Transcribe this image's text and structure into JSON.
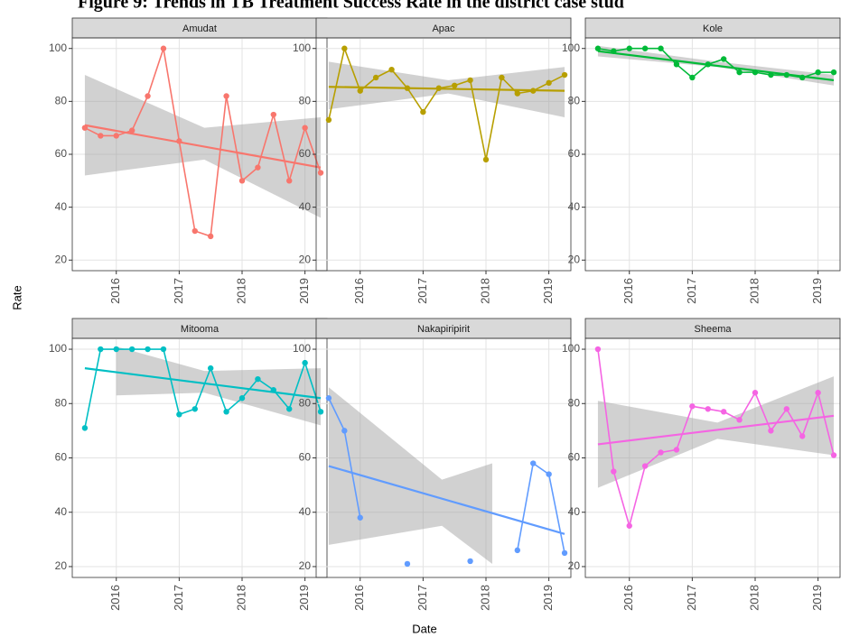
{
  "title": "Figure 9: Trends in TB Treatment Success Rate in the district case stud",
  "xlabel": "Date",
  "ylabel": "Rate",
  "chart_data": [
    {
      "type": "line",
      "title": "Amudat",
      "color": "#F8766D",
      "grid": true,
      "xlim": [
        2015.3,
        2019.35
      ],
      "xticks": [
        2016,
        2017,
        2018,
        2019
      ],
      "ylim": [
        16,
        104
      ],
      "yticks": [
        20,
        40,
        60,
        80,
        100
      ],
      "x": [
        2015.5,
        2015.75,
        2016,
        2016.25,
        2016.5,
        2016.75,
        2017,
        2017.25,
        2017.5,
        2017.75,
        2018,
        2018.25,
        2018.5,
        2018.75,
        2019,
        2019.25
      ],
      "values": [
        70,
        67,
        67,
        69,
        82,
        100,
        65,
        31,
        29,
        82,
        50,
        55,
        75,
        50,
        70,
        53
      ],
      "trend": {
        "x": [
          2015.5,
          2019.25
        ],
        "values": [
          71,
          55
        ]
      },
      "band": {
        "x": [
          2015.5,
          2017.4,
          2019.25
        ],
        "lower": [
          52,
          58,
          36
        ],
        "upper": [
          90,
          70,
          74
        ]
      }
    },
    {
      "type": "line",
      "title": "Apac",
      "color": "#B79F00",
      "grid": true,
      "xlim": [
        2015.3,
        2019.35
      ],
      "xticks": [
        2016,
        2017,
        2018,
        2019
      ],
      "ylim": [
        16,
        104
      ],
      "yticks": [
        20,
        40,
        60,
        80,
        100
      ],
      "x": [
        2015.5,
        2015.75,
        2016,
        2016.25,
        2016.5,
        2016.75,
        2017,
        2017.25,
        2017.5,
        2017.75,
        2018,
        2018.25,
        2018.5,
        2018.75,
        2019,
        2019.25
      ],
      "values": [
        73,
        100,
        84,
        89,
        92,
        85,
        76,
        85,
        86,
        88,
        58,
        89,
        83,
        84,
        87,
        90
      ],
      "trend": {
        "x": [
          2015.5,
          2019.25
        ],
        "values": [
          85.5,
          84
        ]
      },
      "band": {
        "x": [
          2015.5,
          2017.4,
          2019.25
        ],
        "lower": [
          77,
          83,
          74
        ],
        "upper": [
          95,
          88,
          93
        ]
      }
    },
    {
      "type": "line",
      "title": "Kole",
      "color": "#00BA38",
      "grid": true,
      "xlim": [
        2015.3,
        2019.35
      ],
      "xticks": [
        2016,
        2017,
        2018,
        2019
      ],
      "ylim": [
        16,
        104
      ],
      "yticks": [
        20,
        40,
        60,
        80,
        100
      ],
      "x": [
        2015.5,
        2015.75,
        2016,
        2016.25,
        2016.5,
        2016.75,
        2017,
        2017.25,
        2017.5,
        2017.75,
        2018,
        2018.25,
        2018.5,
        2018.75,
        2019,
        2019.25
      ],
      "values": [
        100,
        99,
        100,
        100,
        100,
        94,
        89,
        94,
        96,
        91,
        91,
        90,
        90,
        89,
        91,
        91
      ],
      "trend": {
        "x": [
          2015.5,
          2019.25
        ],
        "values": [
          99,
          88
        ]
      },
      "band": {
        "x": [
          2015.5,
          2017.4,
          2019.25
        ],
        "lower": [
          97,
          93,
          86
        ],
        "upper": [
          101,
          95,
          90
        ]
      }
    },
    {
      "type": "line",
      "title": "Mitooma",
      "color": "#00BFC4",
      "grid": true,
      "xlim": [
        2015.3,
        2019.35
      ],
      "xticks": [
        2016,
        2017,
        2018,
        2019
      ],
      "ylim": [
        16,
        104
      ],
      "yticks": [
        20,
        40,
        60,
        80,
        100
      ],
      "x": [
        2015.5,
        2015.75,
        2016,
        2016.25,
        2016.5,
        2016.75,
        2017,
        2017.25,
        2017.5,
        2017.75,
        2018,
        2018.25,
        2018.5,
        2018.75,
        2019,
        2019.25
      ],
      "values": [
        71,
        100,
        100,
        100,
        100,
        100,
        76,
        78,
        93,
        77,
        82,
        89,
        85,
        78,
        95,
        77
      ],
      "trend": {
        "x": [
          2015.5,
          2019.25
        ],
        "values": [
          93,
          82
        ]
      },
      "band": {
        "x": [
          2016,
          2017.4,
          2019.25
        ],
        "lower": [
          83,
          84,
          72
        ],
        "upper": [
          101,
          92,
          93
        ]
      }
    },
    {
      "type": "line",
      "title": "Nakapiripirit",
      "color": "#619CFF",
      "grid": true,
      "xlim": [
        2015.3,
        2019.35
      ],
      "xticks": [
        2016,
        2017,
        2018,
        2019
      ],
      "ylim": [
        16,
        104
      ],
      "yticks": [
        20,
        40,
        60,
        80,
        100
      ],
      "x": [
        2015.5,
        2015.75,
        2016,
        2016.25,
        2016.5,
        2016.75,
        2017,
        2017.25,
        2017.5,
        2017.75,
        2018,
        2018.25,
        2018.5,
        2018.75,
        2019,
        2019.25
      ],
      "values": [
        82,
        70,
        38,
        null,
        null,
        21,
        null,
        null,
        null,
        22,
        null,
        null,
        26,
        58,
        54,
        25
      ],
      "trend": {
        "x": [
          2015.5,
          2019.25
        ],
        "values": [
          57,
          32
        ]
      },
      "band": {
        "x": [
          2015.5,
          2017.3,
          2018.1
        ],
        "lower": [
          28,
          35,
          21
        ],
        "upper": [
          86,
          52,
          58
        ]
      }
    },
    {
      "type": "line",
      "title": "Sheema",
      "color": "#F564E3",
      "grid": true,
      "xlim": [
        2015.3,
        2019.35
      ],
      "xticks": [
        2016,
        2017,
        2018,
        2019
      ],
      "ylim": [
        16,
        104
      ],
      "yticks": [
        20,
        40,
        60,
        80,
        100
      ],
      "x": [
        2015.5,
        2015.75,
        2016,
        2016.25,
        2016.5,
        2016.75,
        2017,
        2017.25,
        2017.5,
        2017.75,
        2018,
        2018.25,
        2018.5,
        2018.75,
        2019,
        2019.25
      ],
      "values": [
        100,
        55,
        35,
        57,
        62,
        63,
        79,
        78,
        77,
        74,
        84,
        70,
        78,
        68,
        84,
        61
      ],
      "trend": {
        "x": [
          2015.5,
          2019.25
        ],
        "values": [
          65,
          75.5
        ]
      },
      "band": {
        "x": [
          2015.5,
          2017.4,
          2019.25
        ],
        "lower": [
          49,
          67,
          61
        ],
        "upper": [
          81,
          73,
          90
        ]
      }
    }
  ]
}
